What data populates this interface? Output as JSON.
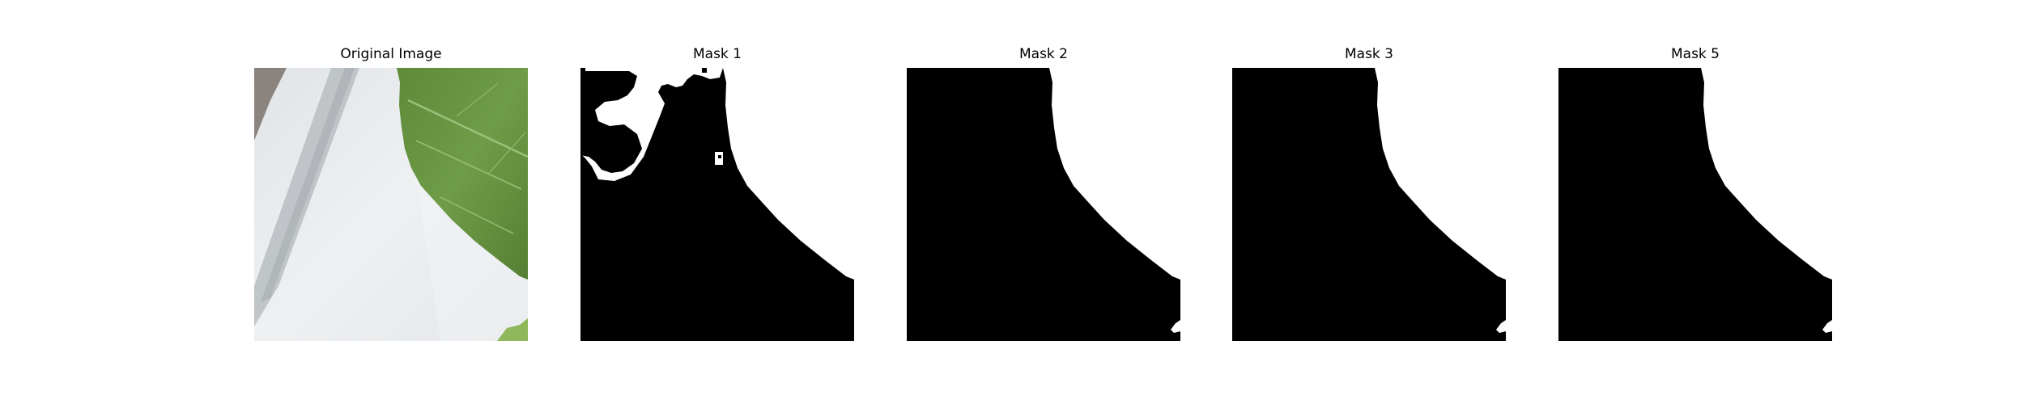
{
  "figure": {
    "panels": [
      {
        "title": "Original Image",
        "kind": "photo",
        "description": "close-up of green leaf over light grey-white surface"
      },
      {
        "title": "Mask 1",
        "kind": "binary-mask"
      },
      {
        "title": "Mask 2",
        "kind": "binary-mask"
      },
      {
        "title": "Mask 3",
        "kind": "binary-mask"
      },
      {
        "title": "Mask 5",
        "kind": "binary-mask"
      }
    ]
  },
  "colors": {
    "background": "#ffffff",
    "mask_foreground": "#ffffff",
    "mask_background": "#000000",
    "leaf_green": "#6e9a47",
    "leaf_dark": "#4f7a34",
    "surface_light": "#e9ecef",
    "surface_shadow": "#c6c9cc"
  }
}
